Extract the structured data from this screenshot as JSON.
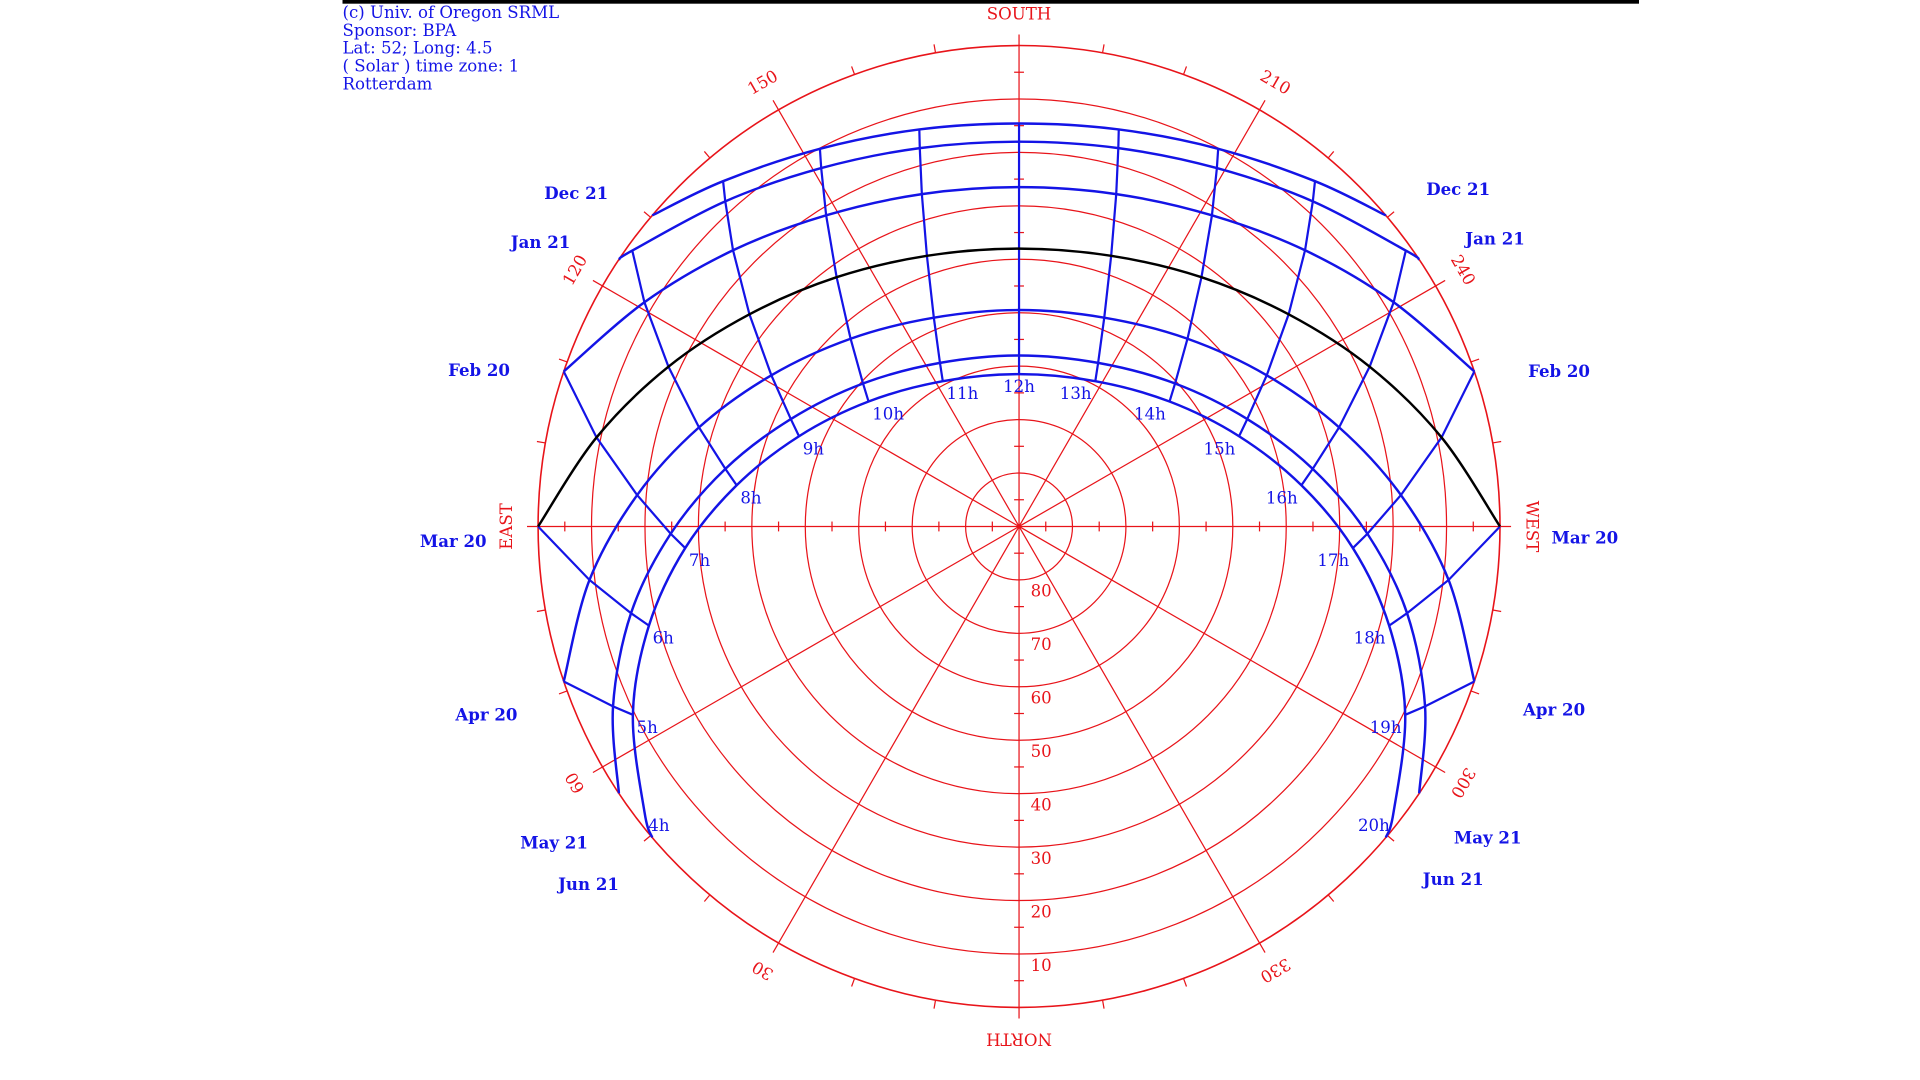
{
  "chart_data": {
    "type": "sunpath",
    "annotations": [
      "(c) Univ. of Oregon SRML",
      "Sponsor: BPA",
      "Lat: 52; Long: 4.5",
      "( Solar ) time zone: 1",
      "Rotterdam"
    ],
    "grid_color": "#e8141a",
    "xlim": [
      0,
      360
    ],
    "xticks": [
      {
        "value": 0,
        "label": "NORTH"
      },
      30,
      60,
      {
        "value": 90,
        "label": "EAST"
      },
      120,
      150,
      {
        "value": 180,
        "label": "SOUTH"
      },
      210,
      240,
      {
        "value": 270,
        "label": "WEST"
      },
      300,
      330
    ],
    "xminorticks": [
      10,
      20,
      40,
      50,
      70,
      80,
      100,
      110,
      130,
      140,
      160,
      170,
      190,
      200,
      220,
      230,
      250,
      260,
      280,
      290,
      310,
      320,
      340,
      350
    ],
    "ylim": [
      90,
      0
    ],
    "yticks": [
      10,
      20,
      30,
      40,
      50,
      60,
      70,
      80
    ],
    "yminorticks": [
      5,
      15,
      25,
      35,
      45,
      55,
      65,
      75,
      85
    ],
    "hour_ticks": [
      {
        "value": 4,
        "label": "4h"
      },
      {
        "value": 5,
        "label": "5h"
      },
      {
        "value": 6,
        "label": "6h"
      },
      {
        "value": 7,
        "label": "7h"
      },
      {
        "value": 8,
        "label": "8h"
      },
      {
        "value": 9,
        "label": "9h"
      },
      {
        "value": 10,
        "label": "10h"
      },
      {
        "value": 11,
        "label": "11h"
      },
      {
        "value": 12,
        "label": "12h"
      },
      {
        "value": 13,
        "label": "13h"
      },
      {
        "value": 14,
        "label": "14h"
      },
      {
        "value": 15,
        "label": "15h"
      },
      {
        "value": 16,
        "label": "16h"
      },
      {
        "value": 17,
        "label": "17h"
      },
      {
        "value": 18,
        "label": "18h"
      },
      {
        "value": 19,
        "label": "19h"
      },
      {
        "value": 20,
        "label": "20h"
      }
    ],
    "series": [
      {
        "name": "Dec 21",
        "color": "#1414e6",
        "hour": [
          8.25,
          9,
          10,
          11,
          12,
          13,
          14,
          15,
          15.75
        ],
        "azimuth": [
          130.3,
          139.4,
          152.2,
          165.9,
          180,
          194.1,
          207.8,
          220.6,
          229.7
        ],
        "altitude": [
          0,
          4.9,
          10.1,
          13.4,
          14.6,
          13.4,
          10.1,
          4.9,
          0
        ]
      },
      {
        "name": "Jan 21",
        "color": "#1414e6",
        "hour": [
          7.85,
          8,
          9,
          10,
          11,
          12,
          13,
          14,
          15,
          16,
          16.15
        ],
        "azimuth": [
          123.7,
          125.5,
          137.9,
          151.1,
          165.3,
          180,
          194.7,
          208.9,
          222.1,
          234.5,
          236.3
        ],
        "altitude": [
          0,
          1.1,
          8.0,
          13.4,
          16.8,
          18.0,
          16.8,
          13.4,
          8.0,
          1.1,
          0
        ]
      },
      {
        "name": "Feb 20",
        "color": "#1414e6",
        "hour": [
          7,
          8,
          9,
          10,
          11,
          12,
          13,
          14,
          15,
          16,
          17
        ],
        "azimuth": [
          108.8,
          120.9,
          134.0,
          148.2,
          163.7,
          180,
          196.3,
          211.8,
          226.0,
          239.1,
          251.2
        ],
        "altitude": [
          0,
          8.3,
          15.6,
          21.5,
          25.2,
          26.5,
          25.2,
          21.5,
          15.6,
          8.3,
          0
        ]
      },
      {
        "name": "Mar 20",
        "color": "#000000",
        "hour": [
          6,
          7,
          8,
          9,
          10,
          11,
          12,
          13,
          14,
          15,
          16,
          17,
          18
        ],
        "azimuth": [
          90,
          101.9,
          114.5,
          128.2,
          143.8,
          161.2,
          180,
          198.8,
          216.2,
          231.8,
          245.5,
          258.1,
          270
        ],
        "altitude": [
          0,
          9.2,
          17.9,
          25.8,
          32.2,
          36.5,
          38.0,
          36.5,
          32.2,
          25.8,
          17.9,
          9.2,
          0
        ]
      },
      {
        "name": "Apr 20",
        "color": "#1414e6",
        "hour": [
          5,
          6,
          7,
          8,
          9,
          10,
          11,
          12,
          13,
          14,
          15,
          16,
          17,
          18,
          19
        ],
        "azimuth": [
          71.2,
          82.9,
          94.7,
          107.2,
          121.4,
          138.1,
          157.8,
          180,
          202.2,
          221.9,
          238.6,
          252.8,
          265.3,
          277.1,
          288.8
        ],
        "altitude": [
          0,
          9.0,
          18.3,
          27.3,
          35.7,
          42.8,
          47.8,
          49.5,
          47.8,
          42.8,
          35.7,
          27.3,
          18.3,
          9.0,
          0
        ]
      },
      {
        "name": "May 21",
        "color": "#1414e6",
        "hour": [
          4.15,
          5,
          6,
          7,
          8,
          9,
          10,
          11,
          12,
          13,
          14,
          15,
          16,
          17,
          18,
          19,
          19.85
        ],
        "azimuth": [
          56.3,
          66.1,
          77.4,
          88.8,
          101.1,
          115.2,
          132.5,
          154.2,
          180,
          205.8,
          227.5,
          244.8,
          258.9,
          271.2,
          282.6,
          293.9,
          303.7
        ],
        "altitude": [
          0,
          6.9,
          15.6,
          24.8,
          34.0,
          42.8,
          50.4,
          56.0,
          58.0,
          56.0,
          50.4,
          42.8,
          34.0,
          24.8,
          15.6,
          6.9,
          0
        ]
      },
      {
        "name": "Jun 21",
        "color": "#1414e6",
        "hour": [
          3.75,
          4,
          5,
          6,
          7,
          8,
          9,
          10,
          11,
          12,
          13,
          14,
          15,
          16,
          17,
          18,
          19,
          20,
          20.25
        ],
        "azimuth": [
          49.7,
          52.6,
          64.0,
          75.0,
          86.3,
          98.3,
          112.3,
          129.7,
          152.3,
          180,
          207.7,
          230.3,
          247.7,
          261.7,
          273.7,
          285.0,
          296.0,
          307.4,
          310.3
        ],
        "altitude": [
          0,
          1.8,
          9.6,
          18.3,
          27.4,
          36.6,
          45.5,
          53.4,
          59.3,
          61.5,
          59.3,
          53.4,
          45.5,
          36.6,
          27.4,
          18.3,
          9.6,
          1.8,
          0
        ]
      }
    ]
  }
}
